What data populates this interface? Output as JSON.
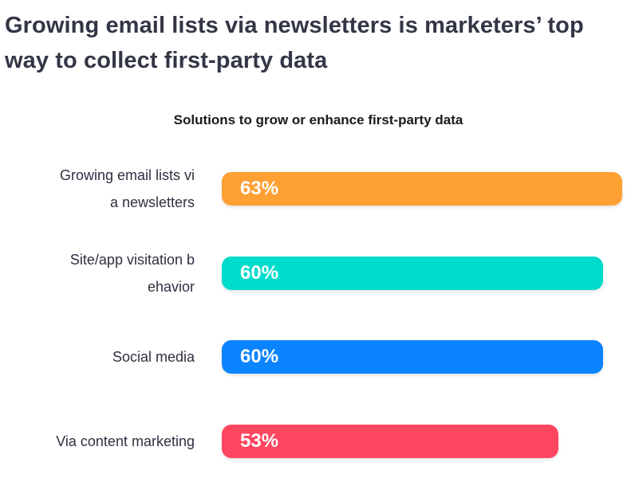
{
  "headline": "Growing email lists via newsletters is marketers’ top way to collect first-party data",
  "chart_data": {
    "type": "bar",
    "orientation": "horizontal",
    "title": "Solutions to grow or enhance first-party data",
    "categories": [
      "Growing email lists via newsletters",
      "Site/app visitation behavior",
      "Social media",
      "Via content marketing"
    ],
    "values": [
      63,
      60,
      60,
      53
    ],
    "value_labels": [
      "63%",
      "60%",
      "60%",
      "53%"
    ],
    "unit": "%",
    "colors": [
      "#ffa033",
      "#00dccc",
      "#0a84ff",
      "#ff4660"
    ],
    "grid": false,
    "legend": "none"
  }
}
